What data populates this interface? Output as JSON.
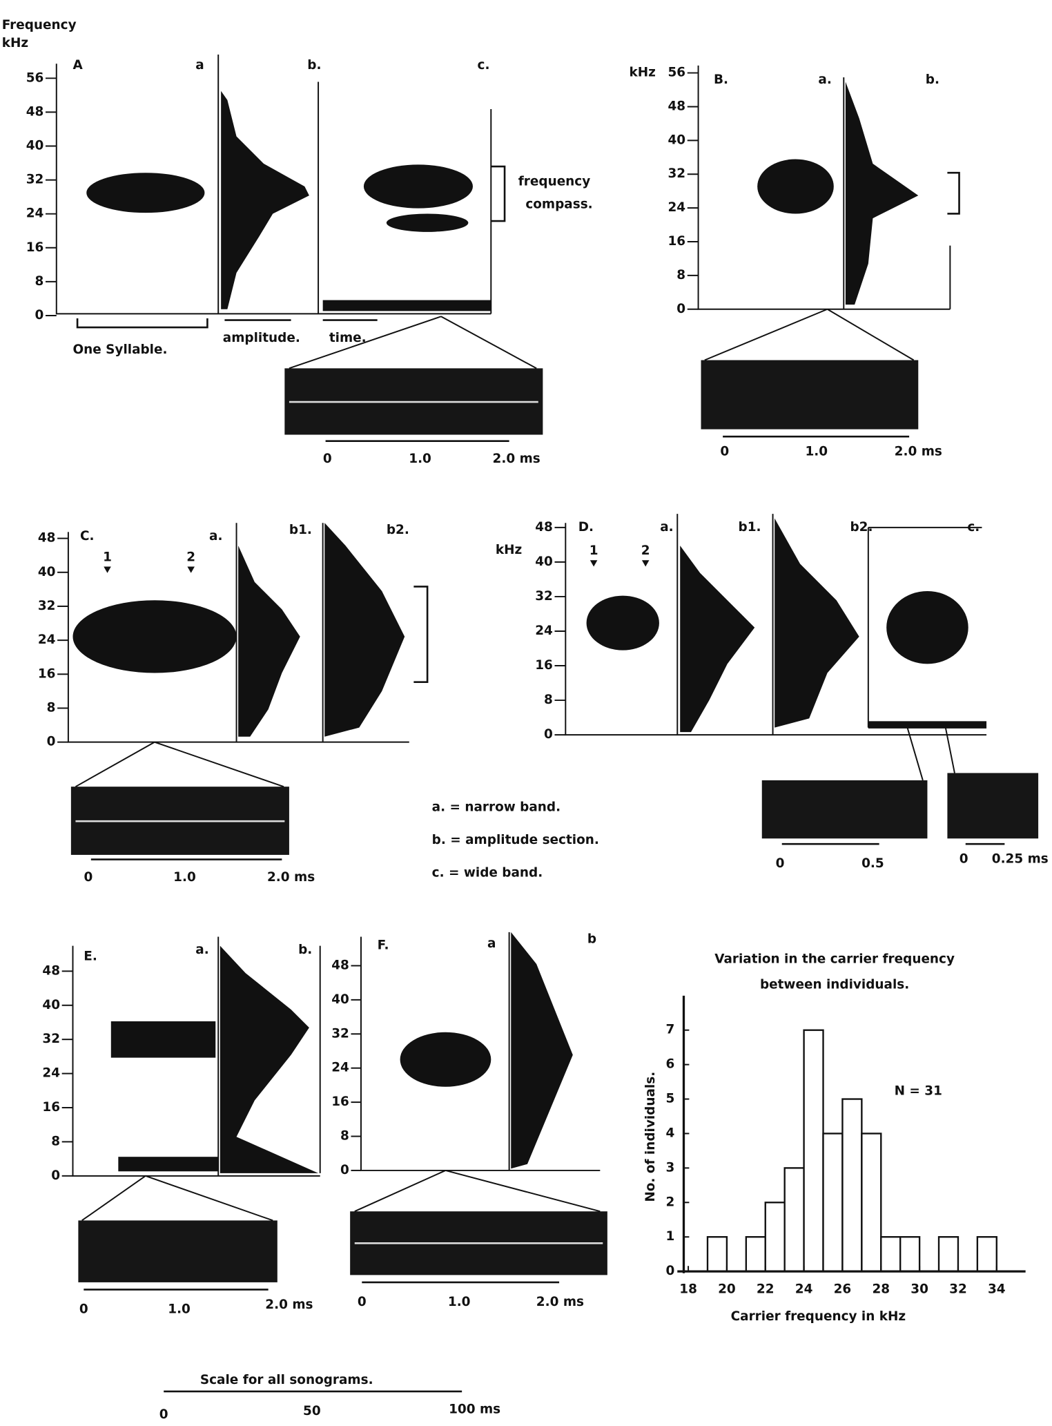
{
  "header": {
    "ylabel": "Frequency",
    "unit": "kHz"
  },
  "panels": [
    {
      "label": "A",
      "sub": [
        "a",
        "b.",
        "c."
      ],
      "yticks": [
        56,
        48,
        40,
        32,
        24,
        16,
        8,
        0
      ],
      "annotations": [
        "frequency",
        "compass.",
        "One Syllable.",
        "amplitude.",
        "time."
      ],
      "scale": [
        "0",
        "1.0",
        "2.0 ms"
      ]
    },
    {
      "label": "B.",
      "unit": "kHz",
      "sub": [
        "a.",
        "b."
      ],
      "yticks": [
        56,
        48,
        40,
        32,
        24,
        16,
        8,
        0
      ],
      "scale": [
        "0",
        "1.0",
        "2.0 ms"
      ]
    },
    {
      "label": "C.",
      "sub": [
        "a.",
        "b1.",
        "b2."
      ],
      "markers": [
        "1",
        "2"
      ],
      "yticks": [
        48,
        40,
        32,
        24,
        16,
        8,
        0
      ],
      "scale": [
        "0",
        "1.0",
        "2.0 ms"
      ]
    },
    {
      "label": "D.",
      "unit": "kHz",
      "sub": [
        "a.",
        "b1.",
        "b2.",
        "c."
      ],
      "markers": [
        "1",
        "2"
      ],
      "yticks": [
        48,
        40,
        32,
        24,
        16,
        8,
        0
      ],
      "scale": [
        "0",
        "0.5"
      ],
      "scale2": [
        "0",
        "0.25 ms"
      ]
    },
    {
      "label": "E.",
      "sub": [
        "a.",
        "b."
      ],
      "yticks": [
        48,
        40,
        32,
        24,
        16,
        8,
        0
      ],
      "scale": [
        "0",
        "1.0",
        "2.0 ms"
      ]
    },
    {
      "label": "F.",
      "sub": [
        "a",
        "b"
      ],
      "yticks": [
        48,
        40,
        32,
        24,
        16,
        8,
        0
      ],
      "scale": [
        "0",
        "1.0",
        "2.0 ms"
      ]
    }
  ],
  "legend": [
    "a. = narrow band.",
    "b. = amplitude section.",
    "c. = wide band."
  ],
  "footer": {
    "title": "Scale for all sonograms.",
    "ticks": [
      "0",
      "50",
      "100 ms"
    ]
  },
  "chart_data": {
    "type": "histogram",
    "title": [
      "Variation in the carrier frequency",
      "between individuals."
    ],
    "annotation": "N = 31",
    "xlabel": "Carrier frequency in kHz",
    "ylabel": "No. of individuals.",
    "bins": [
      19,
      20,
      21,
      22,
      23,
      24,
      25,
      26,
      27,
      28,
      29,
      30,
      31,
      32,
      33,
      34
    ],
    "values": [
      1,
      0,
      1,
      2,
      3,
      7,
      4,
      5,
      4,
      1,
      1,
      0,
      1,
      0,
      1
    ],
    "color": "#ffffff",
    "xlim": [
      18,
      35.5
    ],
    "ylim": [
      0,
      8
    ],
    "xticks": [
      18,
      20,
      22,
      24,
      26,
      28,
      30,
      32,
      34
    ],
    "yticks": [
      0,
      1,
      2,
      3,
      4,
      5,
      6,
      7
    ]
  }
}
